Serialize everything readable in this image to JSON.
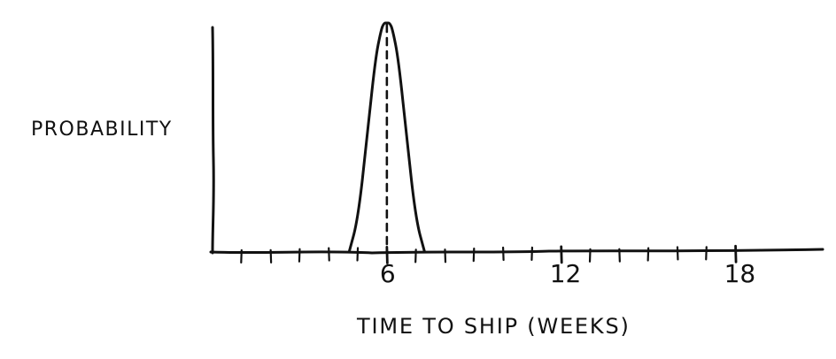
{
  "chart_data": {
    "type": "line",
    "xlabel": "TIME TO SHIP (WEEKS)",
    "ylabel": "PROBABILITY",
    "xlim": [
      0,
      21
    ],
    "ylim": [
      0,
      1
    ],
    "x_ticks": [
      1,
      2,
      3,
      4,
      5,
      6,
      7,
      8,
      9,
      10,
      11,
      12,
      13,
      14,
      15,
      16,
      17,
      18
    ],
    "x_tick_labels": [
      {
        "x": 6,
        "label": "6"
      },
      {
        "x": 12,
        "label": "12"
      },
      {
        "x": 18,
        "label": "18"
      }
    ],
    "series": [
      {
        "x": [
          4.7,
          5.0,
          5.3,
          5.6,
          5.8,
          5.9,
          6.0,
          6.1,
          6.2,
          6.4,
          6.7,
          7.0,
          7.3
        ],
        "y": [
          0.0,
          0.14,
          0.48,
          0.84,
          0.97,
          1.0,
          1.0,
          1.0,
          0.97,
          0.84,
          0.48,
          0.14,
          0.0
        ]
      }
    ],
    "reference_line_x": 6,
    "reference_line_style": "dashed"
  }
}
